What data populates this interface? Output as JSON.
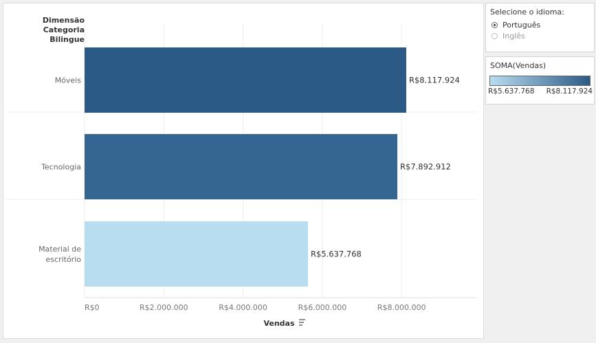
{
  "chart_data": {
    "type": "bar",
    "orientation": "horizontal",
    "row_header": "Dimensão Categoria Bilingue",
    "categories": [
      "Móveis",
      "Tecnologia",
      "Material de escritório"
    ],
    "values": [
      8117924,
      7892912,
      5637768
    ],
    "value_labels": [
      "R$8.117.924",
      "R$7.892.912",
      "R$5.637.768"
    ],
    "bar_colors": [
      "#2b5a87",
      "#356591",
      "#b8dcf0"
    ],
    "xlabel": "Vendas",
    "xlim": [
      0,
      9800000
    ],
    "xticks": [
      0,
      2000000,
      4000000,
      6000000,
      8000000
    ],
    "xtick_labels": [
      "R$0",
      "R$2.000.000",
      "R$4.000.000",
      "R$6.000.000",
      "R$8.000.000"
    ],
    "grid": true
  },
  "filter": {
    "title": "Selecione o idioma:",
    "options": [
      {
        "label": "Português",
        "selected": true
      },
      {
        "label": "Inglês",
        "selected": false
      }
    ]
  },
  "legend": {
    "title": "SOMA(Vendas)",
    "min_label": "R$5.637.768",
    "max_label": "R$8.117.924",
    "color_low": "#b8dcf0",
    "color_high": "#2b5a87"
  },
  "icons": {
    "sort": "sort-descending-icon"
  }
}
